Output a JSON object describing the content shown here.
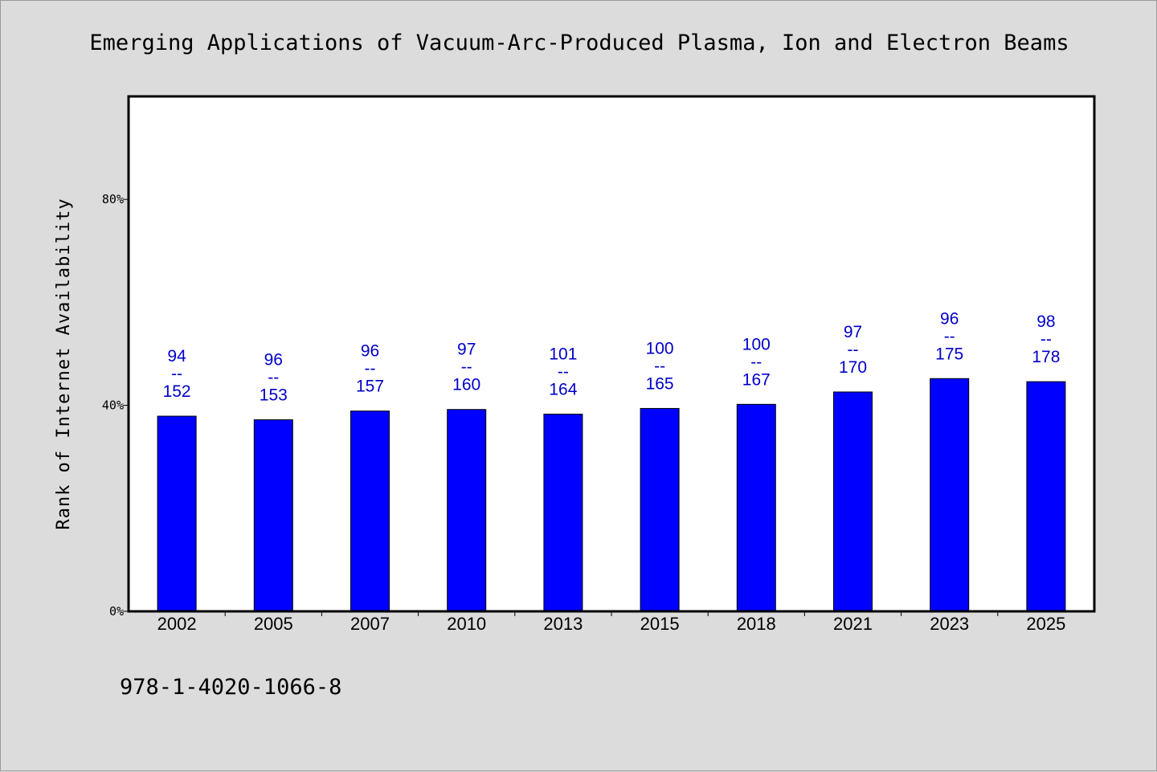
{
  "chart_data": {
    "type": "bar",
    "title": "Emerging Applications of Vacuum-Arc-Produced Plasma, Ion and Electron Beams",
    "ylabel": "Rank of Internet Availability",
    "xlabel": "",
    "categories": [
      "2002",
      "2005",
      "2007",
      "2010",
      "2013",
      "2015",
      "2018",
      "2021",
      "2023",
      "2025"
    ],
    "values": [
      37.9,
      37.2,
      38.9,
      39.2,
      38.3,
      39.4,
      40.2,
      42.6,
      45.2,
      44.6
    ],
    "labels_top": [
      "94",
      "96",
      "96",
      "97",
      "101",
      "100",
      "100",
      "97",
      "96",
      "98"
    ],
    "labels_sep": "--",
    "labels_bottom": [
      "152",
      "153",
      "157",
      "160",
      "164",
      "165",
      "167",
      "170",
      "175",
      "178"
    ],
    "yticks": [
      "0%",
      "40%",
      "80%"
    ],
    "ytick_values": [
      0,
      40,
      80
    ],
    "ylim": [
      0,
      100
    ],
    "grid": false,
    "bar_color": "#0000ff",
    "label_color": "#0000c8",
    "plot_background": "#ffffff",
    "page_background": "#dcdcdc"
  },
  "footer": {
    "isbn": "978-1-4020-1066-8"
  }
}
